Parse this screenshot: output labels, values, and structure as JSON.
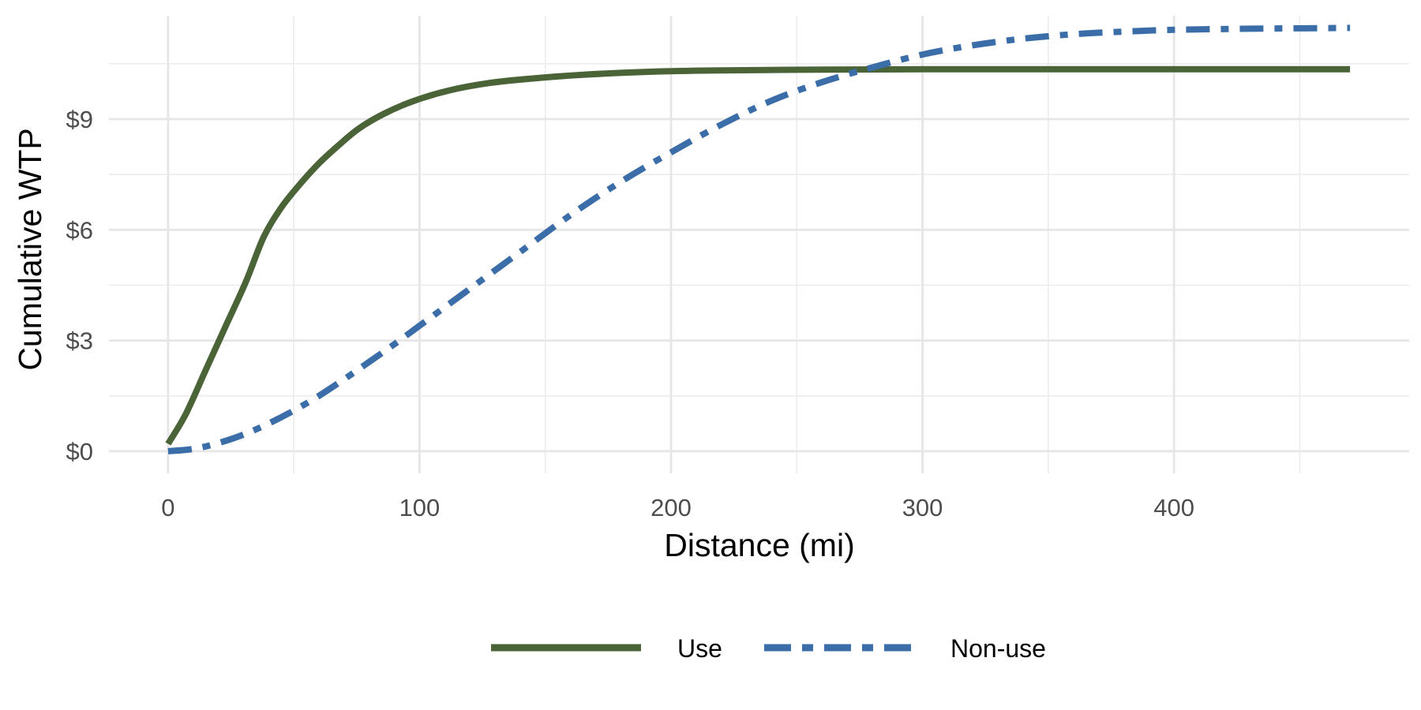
{
  "chart_data": {
    "type": "line",
    "title": "",
    "xlabel": "Distance (mi)",
    "ylabel": "Cumulative WTP",
    "xlim": [
      -23.5,
      493.5
    ],
    "ylim": [
      -0.6,
      11.8
    ],
    "x_ticks": [
      0,
      100,
      200,
      300,
      400
    ],
    "x_tick_labels": [
      "0",
      "100",
      "200",
      "300",
      "400"
    ],
    "y_ticks": [
      0,
      3,
      6,
      9
    ],
    "y_tick_labels": [
      "$0",
      "$3",
      "$6",
      "$9"
    ],
    "grid": true,
    "legend_position": "bottom",
    "series": [
      {
        "name": "Use",
        "color": "#4a6438",
        "line_style": "solid",
        "x": [
          0,
          7,
          15,
          23,
          31,
          38,
          45,
          52,
          60,
          68,
          76,
          86,
          98,
          112,
          128,
          145,
          165,
          190,
          220,
          260,
          300,
          350,
          400,
          470
        ],
        "y": [
          0.2,
          1.0,
          2.2,
          3.4,
          4.6,
          5.8,
          6.6,
          7.2,
          7.8,
          8.3,
          8.75,
          9.15,
          9.5,
          9.78,
          9.98,
          10.1,
          10.2,
          10.28,
          10.32,
          10.34,
          10.35,
          10.35,
          10.35,
          10.35
        ]
      },
      {
        "name": "Non-use",
        "color": "#3b6ea8",
        "line_style": "dashed",
        "x": [
          0,
          10,
          20,
          30,
          40,
          50,
          60,
          70,
          80,
          90,
          100,
          120,
          140,
          160,
          180,
          200,
          220,
          240,
          260,
          280,
          300,
          320,
          340,
          360,
          380,
          400,
          430,
          470
        ],
        "y": [
          0.0,
          0.06,
          0.22,
          0.45,
          0.75,
          1.1,
          1.5,
          1.95,
          2.42,
          2.9,
          3.4,
          4.4,
          5.4,
          6.4,
          7.3,
          8.1,
          8.85,
          9.5,
          10.0,
          10.4,
          10.75,
          11.0,
          11.18,
          11.3,
          11.37,
          11.42,
          11.45,
          11.47
        ]
      }
    ]
  }
}
